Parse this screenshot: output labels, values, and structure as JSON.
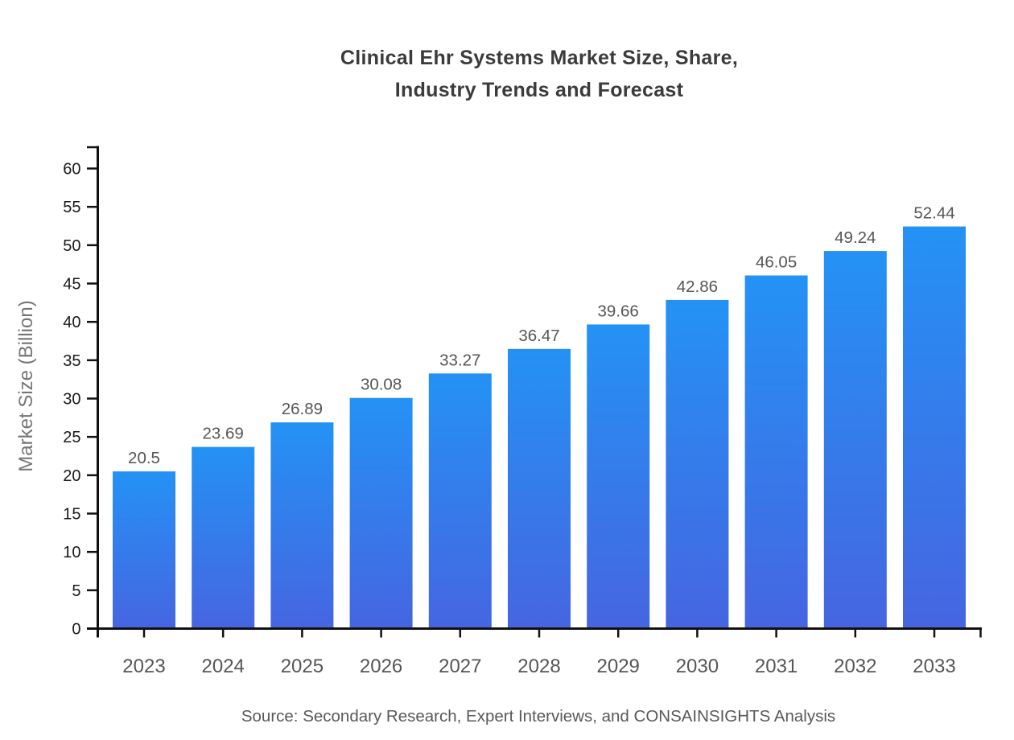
{
  "page": {
    "title_line1": "Clinical Ehr Systems Market Size, Share,",
    "title_line2": "Industry Trends and Forecast",
    "source": "Source: Secondary Research, Expert Interviews, and CONSAINSIGHTS Analysis"
  },
  "chart_data": {
    "type": "bar",
    "title": "Clinical Ehr Systems Market Size, Share, Industry Trends and Forecast",
    "xlabel": "",
    "ylabel": "Market Size (Billion)",
    "categories": [
      "2023",
      "2024",
      "2025",
      "2026",
      "2027",
      "2028",
      "2029",
      "2030",
      "2031",
      "2032",
      "2033"
    ],
    "values": [
      20.5,
      23.69,
      26.89,
      30.08,
      33.27,
      36.47,
      39.66,
      42.86,
      46.05,
      49.24,
      52.44
    ],
    "value_labels": [
      "20.5",
      "23.69",
      "26.89",
      "30.08",
      "33.27",
      "36.47",
      "39.66",
      "42.86",
      "46.05",
      "49.24",
      "52.44"
    ],
    "ylim": [
      0,
      63
    ],
    "yticks": [
      0,
      5,
      10,
      15,
      20,
      25,
      30,
      35,
      40,
      45,
      50,
      55,
      60
    ],
    "grid": false,
    "legend": "none",
    "source": "Source: Secondary Research, Expert Interviews, and CONSAINSIGHTS Analysis",
    "colors": {
      "bar_gradient_top": "#2492f5",
      "bar_gradient_bottom": "#4665e1",
      "axis": "#111111",
      "y_tick_label": "#1a1a1a",
      "x_tick_label": "#565656",
      "value_label": "#565656",
      "title": "#3b3b3b",
      "ylabel": "#757575",
      "source_text": "#595959"
    }
  }
}
